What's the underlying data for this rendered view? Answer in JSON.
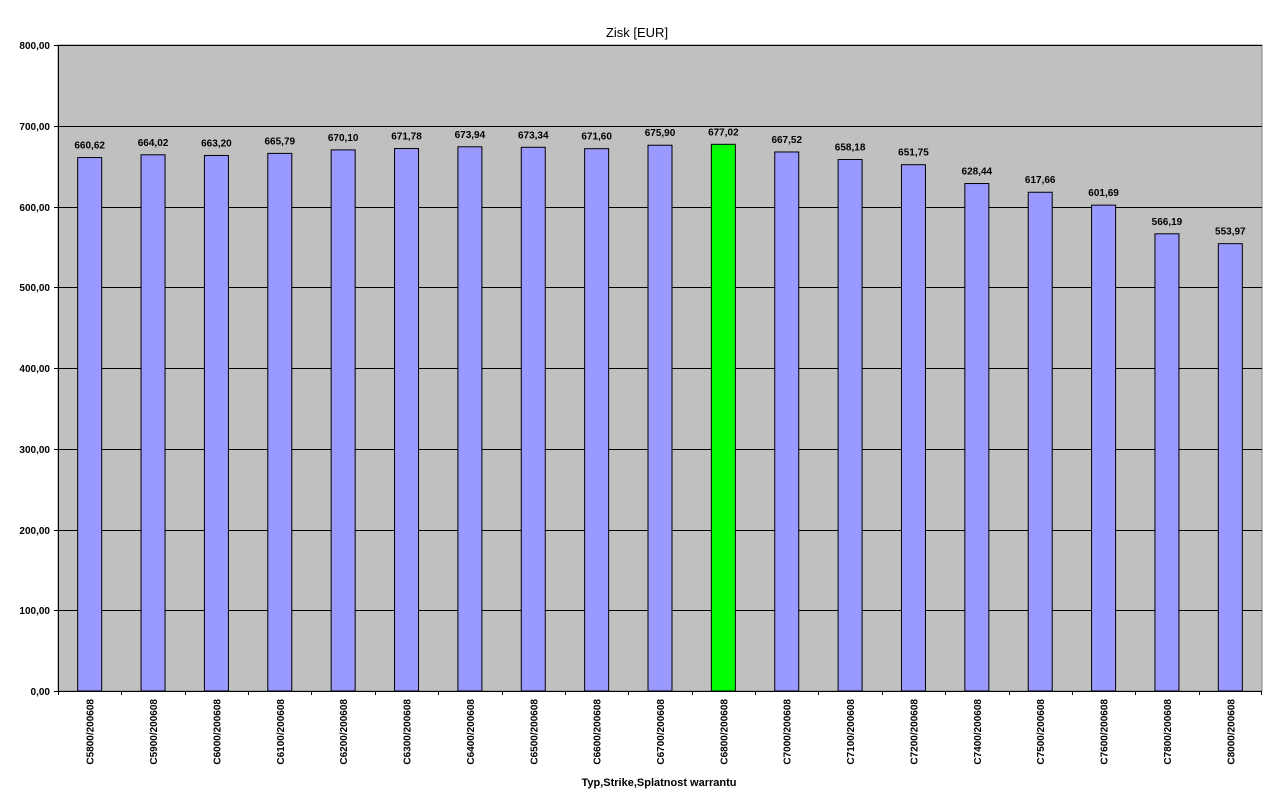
{
  "chart_data": {
    "type": "bar",
    "title": "Zisk [EUR]",
    "xlabel": "Typ,Strike,Splatnost warrantu",
    "ylabel": "",
    "ylim": [
      0,
      800
    ],
    "yticks": [
      "0,00",
      "100,00",
      "200,00",
      "300,00",
      "400,00",
      "500,00",
      "600,00",
      "700,00",
      "800,00"
    ],
    "grid": true,
    "categories": [
      "C5800/200608",
      "C5900/200608",
      "C6000/200608",
      "C6100/200608",
      "C6200/200608",
      "C6300/200608",
      "C6400/200608",
      "C6500/200608",
      "C6600/200608",
      "C6700/200608",
      "C6800/200608",
      "C7000/200608",
      "C7100/200608",
      "C7200/200608",
      "C7400/200608",
      "C7500/200608",
      "C7600/200608",
      "C7800/200608",
      "C8000/200608"
    ],
    "values": [
      660.62,
      664.02,
      663.2,
      665.79,
      670.1,
      671.78,
      673.94,
      673.34,
      671.6,
      675.9,
      677.02,
      667.52,
      658.18,
      651.75,
      628.44,
      617.66,
      601.69,
      566.19,
      553.97
    ],
    "data_labels": [
      "660,62",
      "664,02",
      "663,20",
      "665,79",
      "670,10",
      "671,78",
      "673,94",
      "673,34",
      "671,60",
      "675,90",
      "677,02",
      "667,52",
      "658,18",
      "651,75",
      "628,44",
      "617,66",
      "601,69",
      "566,19",
      "553,97"
    ],
    "colors": {
      "bar": "#9999ff",
      "highlight_bar": "#00ff00",
      "plot_background": "#c0c0c0",
      "gridline": "#000000"
    },
    "highlight_index": 10
  }
}
